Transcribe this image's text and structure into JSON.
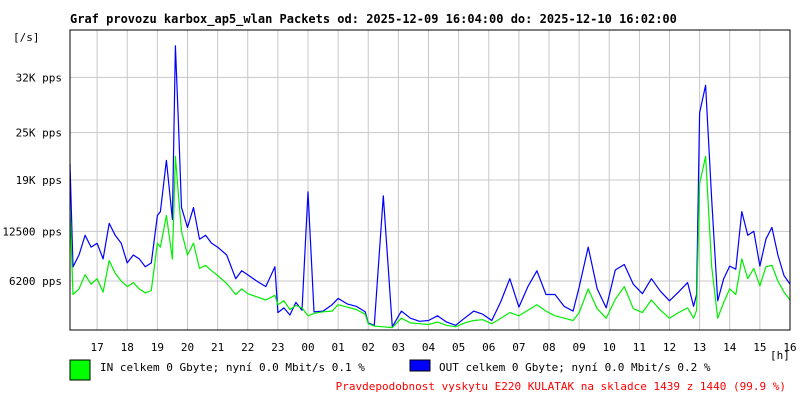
{
  "chart_data": {
    "type": "line",
    "title": "Graf provozu karbox_ap5_wlan Packets od: 2025-12-09 16:04:00 do: 2025-12-10 16:02:00",
    "ylabel": "[/s]",
    "xlabel": "[h]",
    "y_ticks": [
      {
        "label": "6200 pps",
        "value": 6200
      },
      {
        "label": "12500 pps",
        "value": 12500
      },
      {
        "label": "19K pps",
        "value": 19000
      },
      {
        "label": "25K pps",
        "value": 25000
      },
      {
        "label": "32K pps",
        "value": 32000
      }
    ],
    "ylim": [
      0,
      38000
    ],
    "x_range_hours": [
      16.1,
      40.0
    ],
    "x_ticks": [
      "17",
      "18",
      "19",
      "20",
      "21",
      "22",
      "23",
      "00",
      "01",
      "02",
      "03",
      "04",
      "05",
      "06",
      "07",
      "08",
      "09",
      "10",
      "11",
      "12",
      "13",
      "14",
      "15",
      "16"
    ],
    "x_tick_hours": [
      17,
      18,
      19,
      20,
      21,
      22,
      23,
      24,
      25,
      26,
      27,
      28,
      29,
      30,
      31,
      32,
      33,
      34,
      35,
      36,
      37,
      38,
      39,
      40
    ],
    "grid": true,
    "series": [
      {
        "color": "#00ee00",
        "x": [
          16.1,
          16.2,
          16.4,
          16.6,
          16.8,
          17.0,
          17.2,
          17.4,
          17.6,
          17.8,
          18.0,
          18.2,
          18.4,
          18.6,
          18.8,
          19.0,
          19.1,
          19.3,
          19.5,
          19.6,
          19.7,
          19.8,
          20.0,
          20.2,
          20.4,
          20.6,
          20.8,
          21.0,
          21.3,
          21.6,
          21.8,
          22.0,
          22.3,
          22.6,
          22.9,
          23.0,
          23.2,
          23.4,
          23.6,
          23.8,
          24.0,
          24.2,
          24.5,
          24.8,
          25.0,
          25.3,
          25.6,
          25.9,
          26.0,
          26.2,
          26.5,
          26.8,
          27.1,
          27.4,
          27.7,
          28.0,
          28.3,
          28.6,
          28.9,
          29.2,
          29.5,
          29.8,
          30.1,
          30.4,
          30.7,
          31.0,
          31.3,
          31.6,
          31.9,
          32.2,
          32.5,
          32.8,
          33.0,
          33.3,
          33.6,
          33.9,
          34.2,
          34.5,
          34.8,
          35.1,
          35.4,
          35.7,
          36.0,
          36.3,
          36.6,
          36.8,
          36.9,
          37.0,
          37.2,
          37.4,
          37.6,
          37.8,
          38.0,
          38.2,
          38.4,
          38.6,
          38.8,
          39.0,
          39.2,
          39.4,
          39.6,
          39.8,
          40.0
        ],
        "y": [
          15500,
          4500,
          5200,
          7000,
          5800,
          6500,
          4800,
          8800,
          7200,
          6200,
          5500,
          6000,
          5200,
          4700,
          5000,
          11000,
          10500,
          14500,
          9000,
          22000,
          17000,
          12500,
          9500,
          11000,
          7800,
          8200,
          7500,
          6900,
          5900,
          4500,
          5200,
          4600,
          4200,
          3800,
          4400,
          3200,
          3700,
          2600,
          3100,
          2800,
          1800,
          2100,
          2300,
          2400,
          3200,
          2900,
          2600,
          2000,
          800,
          500,
          400,
          300,
          1500,
          900,
          800,
          700,
          1000,
          600,
          400,
          900,
          1200,
          1300,
          800,
          1500,
          2200,
          1800,
          2500,
          3200,
          2400,
          1800,
          1500,
          1200,
          2200,
          5200,
          2700,
          1500,
          3900,
          5500,
          2700,
          2200,
          3800,
          2500,
          1500,
          2200,
          2800,
          1500,
          2500,
          18500,
          22000,
          8000,
          1500,
          3500,
          5200,
          4500,
          9000,
          6500,
          7800,
          5600,
          8000,
          8200,
          6200,
          4800,
          3800
        ]
      },
      {
        "color": "#0000ff",
        "x": [
          16.1,
          16.2,
          16.4,
          16.6,
          16.8,
          17.0,
          17.2,
          17.4,
          17.6,
          17.8,
          18.0,
          18.2,
          18.4,
          18.6,
          18.8,
          19.0,
          19.1,
          19.3,
          19.5,
          19.6,
          19.7,
          19.8,
          20.0,
          20.2,
          20.4,
          20.6,
          20.8,
          21.0,
          21.3,
          21.6,
          21.8,
          22.0,
          22.3,
          22.6,
          22.9,
          23.0,
          23.2,
          23.4,
          23.6,
          23.8,
          24.0,
          24.2,
          24.5,
          24.8,
          25.0,
          25.3,
          25.6,
          25.9,
          26.0,
          26.2,
          26.5,
          26.8,
          27.1,
          27.4,
          27.7,
          28.0,
          28.3,
          28.6,
          28.9,
          29.2,
          29.5,
          29.8,
          30.1,
          30.4,
          30.7,
          31.0,
          31.3,
          31.6,
          31.9,
          32.2,
          32.5,
          32.8,
          33.0,
          33.3,
          33.6,
          33.9,
          34.2,
          34.5,
          34.8,
          35.1,
          35.4,
          35.7,
          36.0,
          36.3,
          36.6,
          36.8,
          36.9,
          37.0,
          37.2,
          37.4,
          37.6,
          37.8,
          38.0,
          38.2,
          38.4,
          38.6,
          38.8,
          39.0,
          39.2,
          39.4,
          39.6,
          39.8,
          40.0
        ],
        "y": [
          21000,
          8000,
          9500,
          12000,
          10500,
          11000,
          9000,
          13500,
          12000,
          11000,
          8500,
          9500,
          9000,
          8000,
          8500,
          14500,
          15000,
          21500,
          14000,
          36000,
          26000,
          15500,
          13000,
          15500,
          11500,
          12000,
          11000,
          10500,
          9500,
          6500,
          7500,
          7000,
          6200,
          5500,
          8000,
          2200,
          2800,
          1900,
          3500,
          2500,
          17500,
          2300,
          2400,
          3200,
          4000,
          3300,
          3000,
          2300,
          900,
          600,
          17000,
          400,
          2400,
          1500,
          1100,
          1200,
          1800,
          1000,
          600,
          1500,
          2400,
          2000,
          1200,
          3600,
          6500,
          2900,
          5500,
          7500,
          4500,
          4500,
          3000,
          2400,
          5400,
          10500,
          5200,
          2800,
          7600,
          8300,
          5800,
          4600,
          6500,
          4900,
          3700,
          4800,
          6000,
          3000,
          4500,
          27500,
          31000,
          16500,
          3700,
          6500,
          8100,
          7700,
          15000,
          12000,
          12500,
          8100,
          11500,
          13000,
          9500,
          6900,
          5800
        ]
      }
    ]
  },
  "legend": {
    "in_text": "IN celkem 0 Gbyte; nyní   0.0 Mbit/s 0.1 %",
    "in_color": "#00ff00",
    "out_text": "OUT celkem 0 Gbyte; nyní   0.0 Mbit/s 0.2 %",
    "out_color": "#0000ff"
  },
  "warning": "Pravdepodobnost vyskytu E220 KULATAK na skladce 1439 z 1440 (99.9 %)"
}
